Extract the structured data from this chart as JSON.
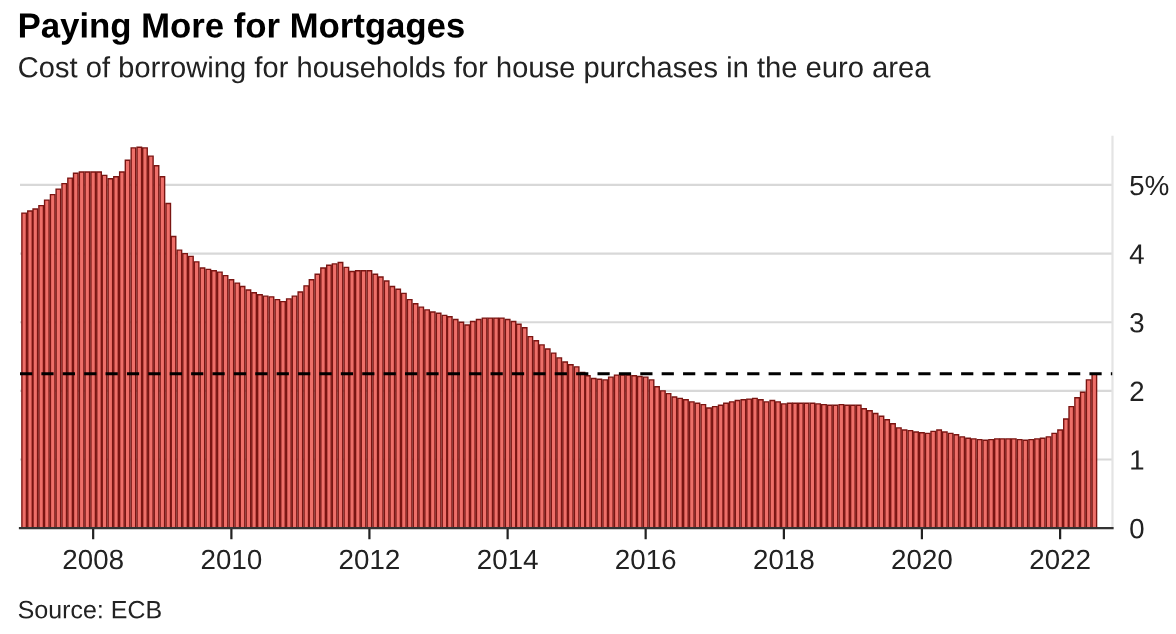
{
  "chart_data": {
    "type": "bar",
    "title": "Paying More for Mortgages",
    "subtitle": "Cost of borrowing for households for house purchases in the euro area",
    "annotations": [
      "Source: ECB"
    ],
    "x": [
      "2007-01",
      "2007-02",
      "2007-03",
      "2007-04",
      "2007-05",
      "2007-06",
      "2007-07",
      "2007-08",
      "2007-09",
      "2007-10",
      "2007-11",
      "2007-12",
      "2008-01",
      "2008-02",
      "2008-03",
      "2008-04",
      "2008-05",
      "2008-06",
      "2008-07",
      "2008-08",
      "2008-09",
      "2008-10",
      "2008-11",
      "2008-12",
      "2009-01",
      "2009-02",
      "2009-03",
      "2009-04",
      "2009-05",
      "2009-06",
      "2009-07",
      "2009-08",
      "2009-09",
      "2009-10",
      "2009-11",
      "2009-12",
      "2010-01",
      "2010-02",
      "2010-03",
      "2010-04",
      "2010-05",
      "2010-06",
      "2010-07",
      "2010-08",
      "2010-09",
      "2010-10",
      "2010-11",
      "2010-12",
      "2011-01",
      "2011-02",
      "2011-03",
      "2011-04",
      "2011-05",
      "2011-06",
      "2011-07",
      "2011-08",
      "2011-09",
      "2011-10",
      "2011-11",
      "2011-12",
      "2012-01",
      "2012-02",
      "2012-03",
      "2012-04",
      "2012-05",
      "2012-06",
      "2012-07",
      "2012-08",
      "2012-09",
      "2012-10",
      "2012-11",
      "2012-12",
      "2013-01",
      "2013-02",
      "2013-03",
      "2013-04",
      "2013-05",
      "2013-06",
      "2013-07",
      "2013-08",
      "2013-09",
      "2013-10",
      "2013-11",
      "2013-12",
      "2014-01",
      "2014-02",
      "2014-03",
      "2014-04",
      "2014-05",
      "2014-06",
      "2014-07",
      "2014-08",
      "2014-09",
      "2014-10",
      "2014-11",
      "2014-12",
      "2015-01",
      "2015-02",
      "2015-03",
      "2015-04",
      "2015-05",
      "2015-06",
      "2015-07",
      "2015-08",
      "2015-09",
      "2015-10",
      "2015-11",
      "2015-12",
      "2016-01",
      "2016-02",
      "2016-03",
      "2016-04",
      "2016-05",
      "2016-06",
      "2016-07",
      "2016-08",
      "2016-09",
      "2016-10",
      "2016-11",
      "2016-12",
      "2017-01",
      "2017-02",
      "2017-03",
      "2017-04",
      "2017-05",
      "2017-06",
      "2017-07",
      "2017-08",
      "2017-09",
      "2017-10",
      "2017-11",
      "2017-12",
      "2018-01",
      "2018-02",
      "2018-03",
      "2018-04",
      "2018-05",
      "2018-06",
      "2018-07",
      "2018-08",
      "2018-09",
      "2018-10",
      "2018-11",
      "2018-12",
      "2019-01",
      "2019-02",
      "2019-03",
      "2019-04",
      "2019-05",
      "2019-06",
      "2019-07",
      "2019-08",
      "2019-09",
      "2019-10",
      "2019-11",
      "2019-12",
      "2020-01",
      "2020-02",
      "2020-03",
      "2020-04",
      "2020-05",
      "2020-06",
      "2020-07",
      "2020-08",
      "2020-09",
      "2020-10",
      "2020-11",
      "2020-12",
      "2021-01",
      "2021-02",
      "2021-03",
      "2021-04",
      "2021-05",
      "2021-06",
      "2021-07",
      "2021-08",
      "2021-09",
      "2021-10",
      "2021-11",
      "2021-12",
      "2022-01",
      "2022-02",
      "2022-03",
      "2022-04",
      "2022-05",
      "2022-06",
      "2022-07"
    ],
    "series": [
      {
        "color": "#ee6f69",
        "values": [
          4.59,
          4.62,
          4.65,
          4.7,
          4.78,
          4.86,
          4.94,
          5.02,
          5.1,
          5.17,
          5.19,
          5.19,
          5.19,
          5.19,
          5.14,
          5.09,
          5.12,
          5.19,
          5.36,
          5.54,
          5.55,
          5.54,
          5.42,
          5.28,
          5.12,
          4.73,
          4.25,
          4.05,
          4.0,
          3.96,
          3.88,
          3.79,
          3.77,
          3.75,
          3.73,
          3.68,
          3.62,
          3.57,
          3.52,
          3.47,
          3.43,
          3.4,
          3.38,
          3.37,
          3.33,
          3.3,
          3.34,
          3.38,
          3.44,
          3.53,
          3.62,
          3.7,
          3.79,
          3.83,
          3.85,
          3.87,
          3.8,
          3.74,
          3.75,
          3.75,
          3.75,
          3.7,
          3.66,
          3.6,
          3.52,
          3.48,
          3.42,
          3.33,
          3.27,
          3.22,
          3.18,
          3.15,
          3.13,
          3.1,
          3.08,
          3.04,
          3.0,
          2.96,
          3.01,
          3.04,
          3.06,
          3.06,
          3.06,
          3.06,
          3.04,
          3.01,
          2.97,
          2.92,
          2.79,
          2.73,
          2.67,
          2.61,
          2.55,
          2.48,
          2.42,
          2.38,
          2.35,
          2.27,
          2.22,
          2.18,
          2.17,
          2.16,
          2.2,
          2.23,
          2.23,
          2.23,
          2.22,
          2.21,
          2.2,
          2.16,
          2.06,
          2.0,
          1.96,
          1.91,
          1.89,
          1.87,
          1.84,
          1.82,
          1.8,
          1.75,
          1.77,
          1.79,
          1.82,
          1.84,
          1.86,
          1.87,
          1.88,
          1.89,
          1.87,
          1.84,
          1.86,
          1.84,
          1.81,
          1.82,
          1.82,
          1.82,
          1.82,
          1.82,
          1.81,
          1.8,
          1.79,
          1.79,
          1.8,
          1.79,
          1.79,
          1.79,
          1.74,
          1.71,
          1.67,
          1.63,
          1.58,
          1.52,
          1.46,
          1.43,
          1.42,
          1.4,
          1.39,
          1.38,
          1.41,
          1.43,
          1.4,
          1.38,
          1.36,
          1.33,
          1.31,
          1.3,
          1.29,
          1.28,
          1.29,
          1.3,
          1.3,
          1.3,
          1.3,
          1.29,
          1.28,
          1.29,
          1.3,
          1.31,
          1.33,
          1.38,
          1.43,
          1.59,
          1.77,
          1.9,
          1.98,
          2.16,
          2.25
        ]
      }
    ],
    "xlim": [
      "2006-12-10",
      "2022-10-05"
    ],
    "xticks": [
      "2008",
      "2010",
      "2012",
      "2014",
      "2016",
      "2018",
      "2020",
      "2022"
    ],
    "ylim": [
      0,
      5.7
    ],
    "yticks": [
      0,
      1,
      2,
      3,
      4,
      {
        "value": 5,
        "label": "5%"
      }
    ],
    "grid": "y",
    "ref_lines": [
      {
        "axis": "y",
        "value": 2.25,
        "color": "#000000",
        "line_style": "dashed"
      }
    ]
  }
}
